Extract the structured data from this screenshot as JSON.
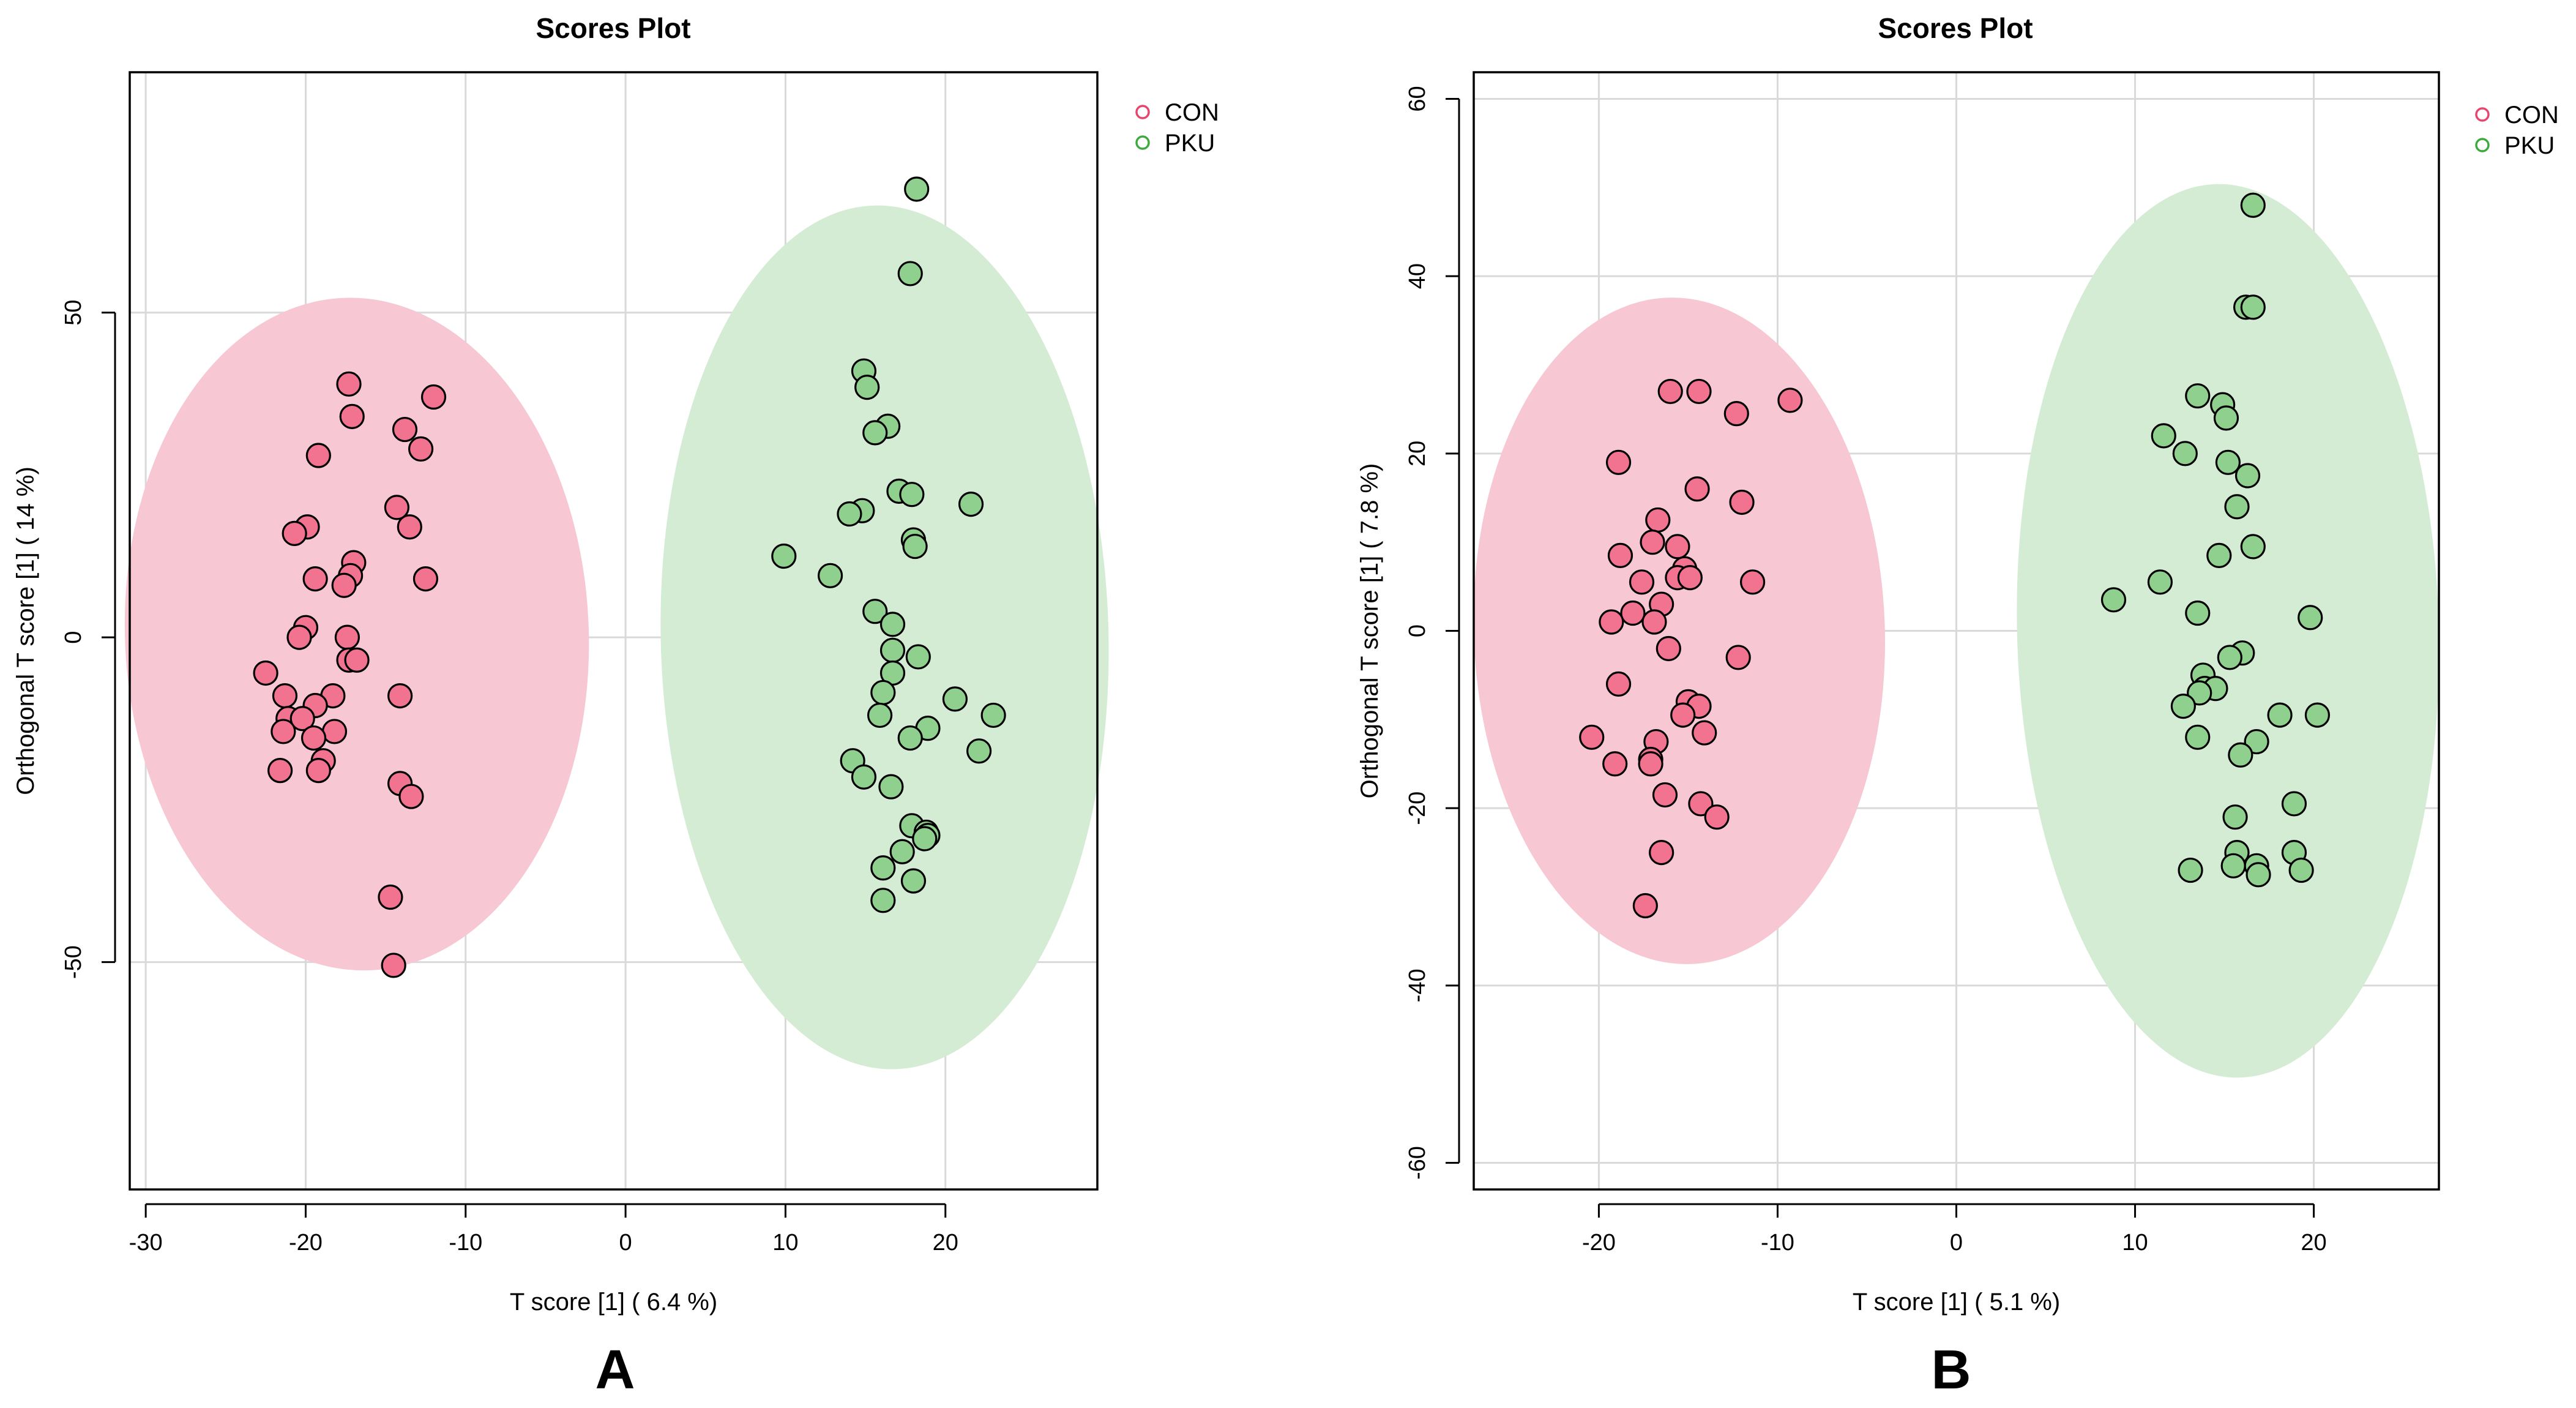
{
  "chart_data": [
    {
      "type": "scatter",
      "panel": "A",
      "title": "Scores Plot",
      "xlabel": "T score [1] ( 6.4 %)",
      "ylabel": "Orthogonal T score [1] ( 14 %)",
      "xlim": [
        -31,
        29.5
      ],
      "ylim": [
        -85,
        87
      ],
      "xticks": [
        -30,
        -20,
        -10,
        0,
        10,
        20
      ],
      "yticks": [
        -50,
        0,
        50
      ],
      "legend_position": "top-right",
      "series": [
        {
          "name": "CON",
          "color": "#e8456e",
          "fill": "#f1738f",
          "ellipse_fill": "#f7c7d3",
          "ellipse": {
            "cx": -16.8,
            "cy": 0.5,
            "rx": 14.5,
            "ry": 51.8,
            "angle": -2.2
          },
          "points": [
            [
              -17.3,
              39
            ],
            [
              -12,
              37
            ],
            [
              -17.1,
              34
            ],
            [
              -13.8,
              32
            ],
            [
              -12.8,
              29
            ],
            [
              -19.2,
              28
            ],
            [
              -14.3,
              20
            ],
            [
              -13.5,
              17
            ],
            [
              -19.9,
              17
            ],
            [
              -20.7,
              16
            ],
            [
              -17,
              11.5
            ],
            [
              -17.2,
              9.5
            ],
            [
              -19.4,
              9
            ],
            [
              -12.5,
              9
            ],
            [
              -17.6,
              8
            ],
            [
              -20,
              1.5
            ],
            [
              -20.4,
              0
            ],
            [
              -17.4,
              0
            ],
            [
              -17.3,
              -3.5
            ],
            [
              -16.8,
              -3.5
            ],
            [
              -22.5,
              -5.5
            ],
            [
              -21.3,
              -9
            ],
            [
              -18.3,
              -9
            ],
            [
              -14.1,
              -9
            ],
            [
              -19.4,
              -10.5
            ],
            [
              -21.1,
              -12.5
            ],
            [
              -20.2,
              -12.5
            ],
            [
              -21.4,
              -14.5
            ],
            [
              -18.2,
              -14.5
            ],
            [
              -19.5,
              -15.5
            ],
            [
              -18.9,
              -19
            ],
            [
              -21.6,
              -20.5
            ],
            [
              -19.2,
              -20.5
            ],
            [
              -14.1,
              -22.5
            ],
            [
              -13.4,
              -24.5
            ],
            [
              -14.7,
              -40
            ],
            [
              -14.5,
              -50.5
            ]
          ]
        },
        {
          "name": "PKU",
          "color": "#3daa3d",
          "fill": "#8fd08f",
          "ellipse_fill": "#d3ecd3",
          "ellipse": {
            "cx": 16.2,
            "cy": 0,
            "rx": 14,
            "ry": 66.5,
            "angle": -1.3
          },
          "points": [
            [
              18.2,
              69
            ],
            [
              17.8,
              56
            ],
            [
              14.9,
              41
            ],
            [
              15.1,
              38.5
            ],
            [
              16.4,
              32.5
            ],
            [
              15.6,
              31.5
            ],
            [
              17.1,
              22.5
            ],
            [
              17.9,
              22
            ],
            [
              21.6,
              20.5
            ],
            [
              14.8,
              19.5
            ],
            [
              14,
              19
            ],
            [
              18,
              15
            ],
            [
              18.1,
              14
            ],
            [
              9.9,
              12.5
            ],
            [
              12.8,
              9.5
            ],
            [
              15.6,
              4
            ],
            [
              16.7,
              2
            ],
            [
              16.7,
              -2
            ],
            [
              18.3,
              -3
            ],
            [
              16.7,
              -5.5
            ],
            [
              16.1,
              -8.5
            ],
            [
              20.6,
              -9.5
            ],
            [
              23,
              -12
            ],
            [
              15.9,
              -12
            ],
            [
              18.9,
              -14
            ],
            [
              17.8,
              -15.5
            ],
            [
              14.2,
              -19
            ],
            [
              22.1,
              -17.5
            ],
            [
              14.9,
              -21.5
            ],
            [
              16.6,
              -23
            ],
            [
              17.9,
              -29
            ],
            [
              18.8,
              -30
            ],
            [
              18.9,
              -30.5
            ],
            [
              18.7,
              -31
            ],
            [
              17.3,
              -33
            ],
            [
              16.1,
              -35.5
            ],
            [
              18,
              -37.5
            ],
            [
              16.1,
              -40.5
            ]
          ]
        }
      ]
    },
    {
      "type": "scatter",
      "panel": "B",
      "title": "Scores Plot",
      "xlabel": "T score [1] ( 5.1 %)",
      "ylabel": "Orthogonal T score [1] ( 7.8 %)",
      "xlim": [
        -27,
        27
      ],
      "ylim": [
        -63,
        63
      ],
      "xticks": [
        -20,
        -10,
        0,
        10,
        20
      ],
      "yticks": [
        -60,
        -40,
        -20,
        0,
        20,
        40,
        60
      ],
      "legend_position": "top-right",
      "series": [
        {
          "name": "CON",
          "color": "#e8456e",
          "fill": "#f1738f",
          "ellipse_fill": "#f7c7d3",
          "ellipse": {
            "cx": -15.5,
            "cy": 0,
            "rx": 11.5,
            "ry": 37.6,
            "angle": -2
          },
          "points": [
            [
              -16,
              27
            ],
            [
              -14.4,
              27
            ],
            [
              -9.3,
              26
            ],
            [
              -12.3,
              24.5
            ],
            [
              -18.9,
              19
            ],
            [
              -14.5,
              16
            ],
            [
              -12,
              14.5
            ],
            [
              -16.7,
              12.5
            ],
            [
              -17,
              10
            ],
            [
              -15.6,
              9.5
            ],
            [
              -18.8,
              8.5
            ],
            [
              -15.2,
              7
            ],
            [
              -15.6,
              6
            ],
            [
              -14.9,
              6
            ],
            [
              -11.4,
              5.5
            ],
            [
              -17.6,
              5.5
            ],
            [
              -16.5,
              3
            ],
            [
              -18.1,
              2
            ],
            [
              -16.9,
              1
            ],
            [
              -19.3,
              1
            ],
            [
              -16.1,
              -2
            ],
            [
              -12.2,
              -3
            ],
            [
              -18.9,
              -6
            ],
            [
              -15,
              -8
            ],
            [
              -14.4,
              -8.5
            ],
            [
              -15.3,
              -9.5
            ],
            [
              -14.1,
              -11.5
            ],
            [
              -20.4,
              -12
            ],
            [
              -16.8,
              -12.5
            ],
            [
              -17.1,
              -14.5
            ],
            [
              -17.1,
              -15
            ],
            [
              -19.1,
              -15
            ],
            [
              -16.3,
              -18.5
            ],
            [
              -14.3,
              -19.5
            ],
            [
              -13.4,
              -21
            ],
            [
              -16.5,
              -25
            ],
            [
              -17.4,
              -31
            ]
          ]
        },
        {
          "name": "PKU",
          "color": "#3daa3d",
          "fill": "#8fd08f",
          "ellipse_fill": "#d3ecd3",
          "ellipse": {
            "cx": 15.2,
            "cy": 0,
            "rx": 11.8,
            "ry": 50.4,
            "angle": -1.5
          },
          "points": [
            [
              16.6,
              48
            ],
            [
              16.2,
              36.5
            ],
            [
              16.6,
              36.5
            ],
            [
              13.5,
              26.5
            ],
            [
              14.9,
              25.5
            ],
            [
              15.1,
              24
            ],
            [
              11.6,
              22
            ],
            [
              12.8,
              20
            ],
            [
              15.2,
              19
            ],
            [
              16.3,
              17.5
            ],
            [
              15.7,
              14
            ],
            [
              16.6,
              9.5
            ],
            [
              14.7,
              8.5
            ],
            [
              11.4,
              5.5
            ],
            [
              8.8,
              3.5
            ],
            [
              13.5,
              2
            ],
            [
              19.8,
              1.5
            ],
            [
              16,
              -2.5
            ],
            [
              15.3,
              -3
            ],
            [
              13.8,
              -5
            ],
            [
              13.9,
              -6.5
            ],
            [
              14.5,
              -6.5
            ],
            [
              13.6,
              -7
            ],
            [
              12.7,
              -8.5
            ],
            [
              18.1,
              -9.5
            ],
            [
              20.2,
              -9.5
            ],
            [
              13.5,
              -12
            ],
            [
              16.8,
              -12.5
            ],
            [
              15.9,
              -14
            ],
            [
              18.9,
              -19.5
            ],
            [
              15.6,
              -21
            ],
            [
              15.7,
              -25
            ],
            [
              18.9,
              -25
            ],
            [
              15.5,
              -26.5
            ],
            [
              16.8,
              -26.5
            ],
            [
              13.1,
              -27
            ],
            [
              19.3,
              -27
            ],
            [
              16.9,
              -27.5
            ]
          ]
        }
      ]
    }
  ]
}
